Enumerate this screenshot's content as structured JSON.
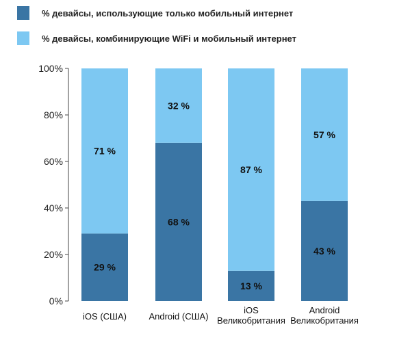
{
  "colors": {
    "mobile_only": "#3a75a4",
    "combined": "#7dc8f2",
    "axis": "#444444"
  },
  "chart_data": {
    "type": "bar",
    "stacked": true,
    "categories": [
      [
        "iOS (США)"
      ],
      [
        "Android (США)"
      ],
      [
        "iOS",
        "Великобритания"
      ],
      [
        "Android",
        "Великобритания"
      ]
    ],
    "series": [
      {
        "name": "%  девайсы, использующие только мобильный интернет",
        "color": "#3a75a4",
        "values": [
          29,
          68,
          13,
          43
        ],
        "labels": [
          "29 %",
          "68 %",
          "13 %",
          "43 %"
        ]
      },
      {
        "name": "%  девайсы, комбинирующие WiFi и мобильный интернет",
        "color": "#7dc8f2",
        "values": [
          71,
          32,
          87,
          57
        ],
        "labels": [
          "71 %",
          "32 %",
          "87 %",
          "57 %"
        ]
      }
    ],
    "ylim": [
      0,
      100
    ],
    "yticks": [
      "0%",
      "20%",
      "40%",
      "60%",
      "80%",
      "100%"
    ],
    "grid": false,
    "legend": "top-left"
  }
}
